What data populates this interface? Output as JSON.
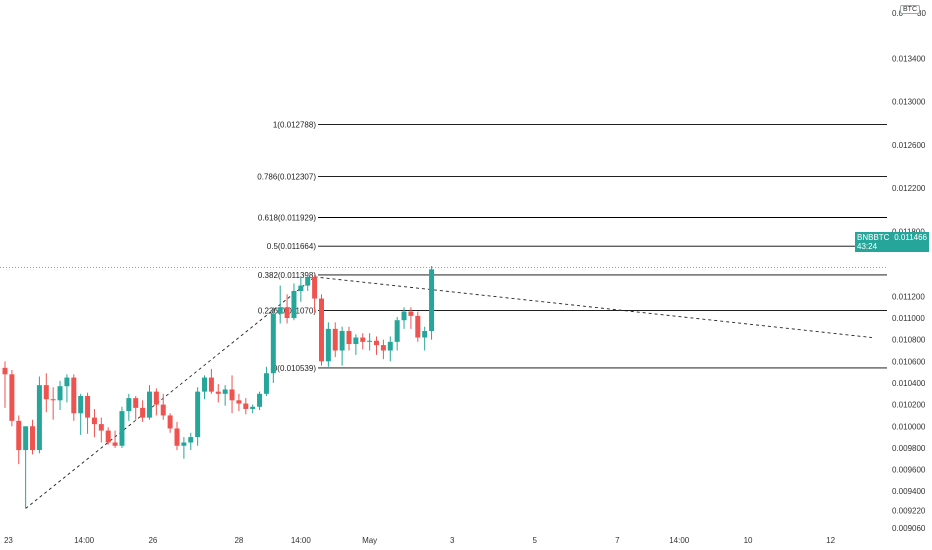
{
  "symbol": "BNBBTC",
  "price_unit": "BTC",
  "last_price": "0.011466",
  "countdown": "43:24",
  "colors": {
    "up": "#26a69a",
    "down": "#ef5350",
    "fib": "#000000",
    "grid": "#f0f3fa",
    "hline": "#26a69a"
  },
  "chart_data": {
    "type": "candlestick",
    "y_axis": {
      "ylim": [
        0.00906,
        0.0138
      ],
      "ticks": [
        "0.013400",
        "0.013000",
        "0.012600",
        "0.012200",
        "0.011800",
        "0.011200",
        "0.011000",
        "0.010800",
        "0.010600",
        "0.010400",
        "0.010200",
        "0.010000",
        "0.009800",
        "0.009600",
        "0.009400",
        "0.009220",
        "0.009060"
      ],
      "top_partial": "0.0",
      "top_partial_suffix": "30"
    },
    "x_axis": {
      "ticks": [
        {
          "label": "23",
          "idx": 0.5
        },
        {
          "label": "14:00",
          "idx": 11.5
        },
        {
          "label": "26",
          "idx": 21.5
        },
        {
          "label": "28",
          "idx": 34
        },
        {
          "label": "14:00",
          "idx": 43
        },
        {
          "label": "May",
          "idx": 53
        },
        {
          "label": "3",
          "idx": 65
        },
        {
          "label": "5",
          "idx": 77
        },
        {
          "label": "7",
          "idx": 89
        },
        {
          "label": "14:00",
          "idx": 98
        },
        {
          "label": "10",
          "idx": 108
        },
        {
          "label": "12",
          "idx": 120
        }
      ]
    },
    "candles": [
      [
        0.01054,
        0.0106,
        0.01017,
        0.01048
      ],
      [
        0.01048,
        0.01052,
        0.01,
        0.01005
      ],
      [
        0.01005,
        0.0101,
        0.00965,
        0.00978
      ],
      [
        0.00978,
        0.00998,
        0.00924,
        0.01
      ],
      [
        0.01,
        0.01006,
        0.00974,
        0.00978
      ],
      [
        0.00978,
        0.01046,
        0.00975,
        0.01038
      ],
      [
        0.01038,
        0.01049,
        0.01013,
        0.01025
      ],
      [
        0.01025,
        0.01036,
        0.01006,
        0.01024
      ],
      [
        0.01024,
        0.01042,
        0.01015,
        0.01037
      ],
      [
        0.01037,
        0.01048,
        0.01022,
        0.01045
      ],
      [
        0.01045,
        0.01048,
        0.01005,
        0.01012
      ],
      [
        0.01012,
        0.0103,
        0.00992,
        0.01028
      ],
      [
        0.01028,
        0.01031,
        0.00993,
        0.01008
      ],
      [
        0.01008,
        0.01016,
        0.0099,
        0.01002
      ],
      [
        0.01002,
        0.01008,
        0.00985,
        0.00996
      ],
      [
        0.00996,
        0.00999,
        0.00983,
        0.00985
      ],
      [
        0.00985,
        0.00996,
        0.0098,
        0.00982
      ],
      [
        0.00982,
        0.01018,
        0.0098,
        0.01014
      ],
      [
        0.01014,
        0.0103,
        0.01005,
        0.01026
      ],
      [
        0.01026,
        0.01028,
        0.01006,
        0.01017
      ],
      [
        0.01017,
        0.01024,
        0.01004,
        0.01008
      ],
      [
        0.01008,
        0.01038,
        0.01006,
        0.01032
      ],
      [
        0.01032,
        0.01035,
        0.0101,
        0.0102
      ],
      [
        0.0102,
        0.0103,
        0.01006,
        0.0101
      ],
      [
        0.0101,
        0.01012,
        0.00994,
        0.00998
      ],
      [
        0.00998,
        0.01004,
        0.00978,
        0.00982
      ],
      [
        0.00982,
        0.0099,
        0.0097,
        0.00985
      ],
      [
        0.00985,
        0.00994,
        0.00978,
        0.0099
      ],
      [
        0.0099,
        0.01036,
        0.00982,
        0.01032
      ],
      [
        0.01032,
        0.01047,
        0.01025,
        0.01045
      ],
      [
        0.01045,
        0.01053,
        0.0103,
        0.01032
      ],
      [
        0.01032,
        0.01039,
        0.01022,
        0.0103
      ],
      [
        0.0103,
        0.01038,
        0.01019,
        0.01034
      ],
      [
        0.01034,
        0.01047,
        0.01012,
        0.01024
      ],
      [
        0.01024,
        0.0103,
        0.01014,
        0.01021
      ],
      [
        0.01021,
        0.01026,
        0.01011,
        0.01016
      ],
      [
        0.01016,
        0.0102,
        0.01012,
        0.01018
      ],
      [
        0.01018,
        0.01032,
        0.01015,
        0.0103
      ],
      [
        0.0103,
        0.01055,
        0.01028,
        0.01049
      ],
      [
        0.01049,
        0.0111,
        0.0104,
        0.01104
      ],
      [
        0.01104,
        0.0113,
        0.01095,
        0.0111
      ],
      [
        0.0111,
        0.01122,
        0.01095,
        0.011
      ],
      [
        0.011,
        0.01132,
        0.01098,
        0.01125
      ],
      [
        0.01125,
        0.01138,
        0.01115,
        0.0113
      ],
      [
        0.0113,
        0.0114,
        0.01125,
        0.01138
      ],
      [
        0.01138,
        0.0114,
        0.01105,
        0.01118
      ],
      [
        0.01118,
        0.01122,
        0.01056,
        0.0106
      ],
      [
        0.0106,
        0.01096,
        0.01055,
        0.0109
      ],
      [
        0.0109,
        0.01096,
        0.01064,
        0.0107
      ],
      [
        0.0107,
        0.01092,
        0.01056,
        0.01088
      ],
      [
        0.01088,
        0.01092,
        0.0107,
        0.01076
      ],
      [
        0.01076,
        0.01085,
        0.01066,
        0.01082
      ],
      [
        0.01082,
        0.01086,
        0.01071,
        0.01078
      ],
      [
        0.01078,
        0.01086,
        0.0107,
        0.01079
      ],
      [
        0.01079,
        0.01083,
        0.01066,
        0.01075
      ],
      [
        0.01075,
        0.0108,
        0.01062,
        0.0107
      ],
      [
        0.0107,
        0.01083,
        0.0106,
        0.01078
      ],
      [
        0.01078,
        0.01101,
        0.0107,
        0.01098
      ],
      [
        0.01098,
        0.0111,
        0.0109,
        0.01106
      ],
      [
        0.01106,
        0.0111,
        0.0109,
        0.01102
      ],
      [
        0.01102,
        0.01106,
        0.01078,
        0.01082
      ],
      [
        0.01082,
        0.01092,
        0.0107,
        0.01088
      ],
      [
        0.01088,
        0.01148,
        0.0108,
        0.01145
      ]
    ],
    "fib_levels": [
      {
        "ratio": "1",
        "value": 0.012788,
        "label": "1(0.012788)"
      },
      {
        "ratio": "0.786",
        "value": 0.012307,
        "label": "0.786(0.012307)"
      },
      {
        "ratio": "0.618",
        "value": 0.011929,
        "label": "0.618(0.011929)"
      },
      {
        "ratio": "0.5",
        "value": 0.011664,
        "label": "0.5(0.011664)"
      },
      {
        "ratio": "0.382",
        "value": 0.011398,
        "label": "0.382(0.011398)"
      },
      {
        "ratio": "0.236",
        "value": 0.01107,
        "label": "0.236(0.011070)"
      },
      {
        "ratio": "0",
        "value": 0.010539,
        "label": "0(0.010539)"
      }
    ],
    "trendlines": [
      {
        "from": {
          "idx": 3,
          "value": 0.00924
        },
        "to": {
          "idx": 45,
          "value": 0.01138
        }
      },
      {
        "from": {
          "idx": 45,
          "value": 0.01138
        },
        "to": {
          "idx": 126,
          "value": 0.01082
        }
      }
    ],
    "current_price_line": 0.011466,
    "grid": false
  }
}
